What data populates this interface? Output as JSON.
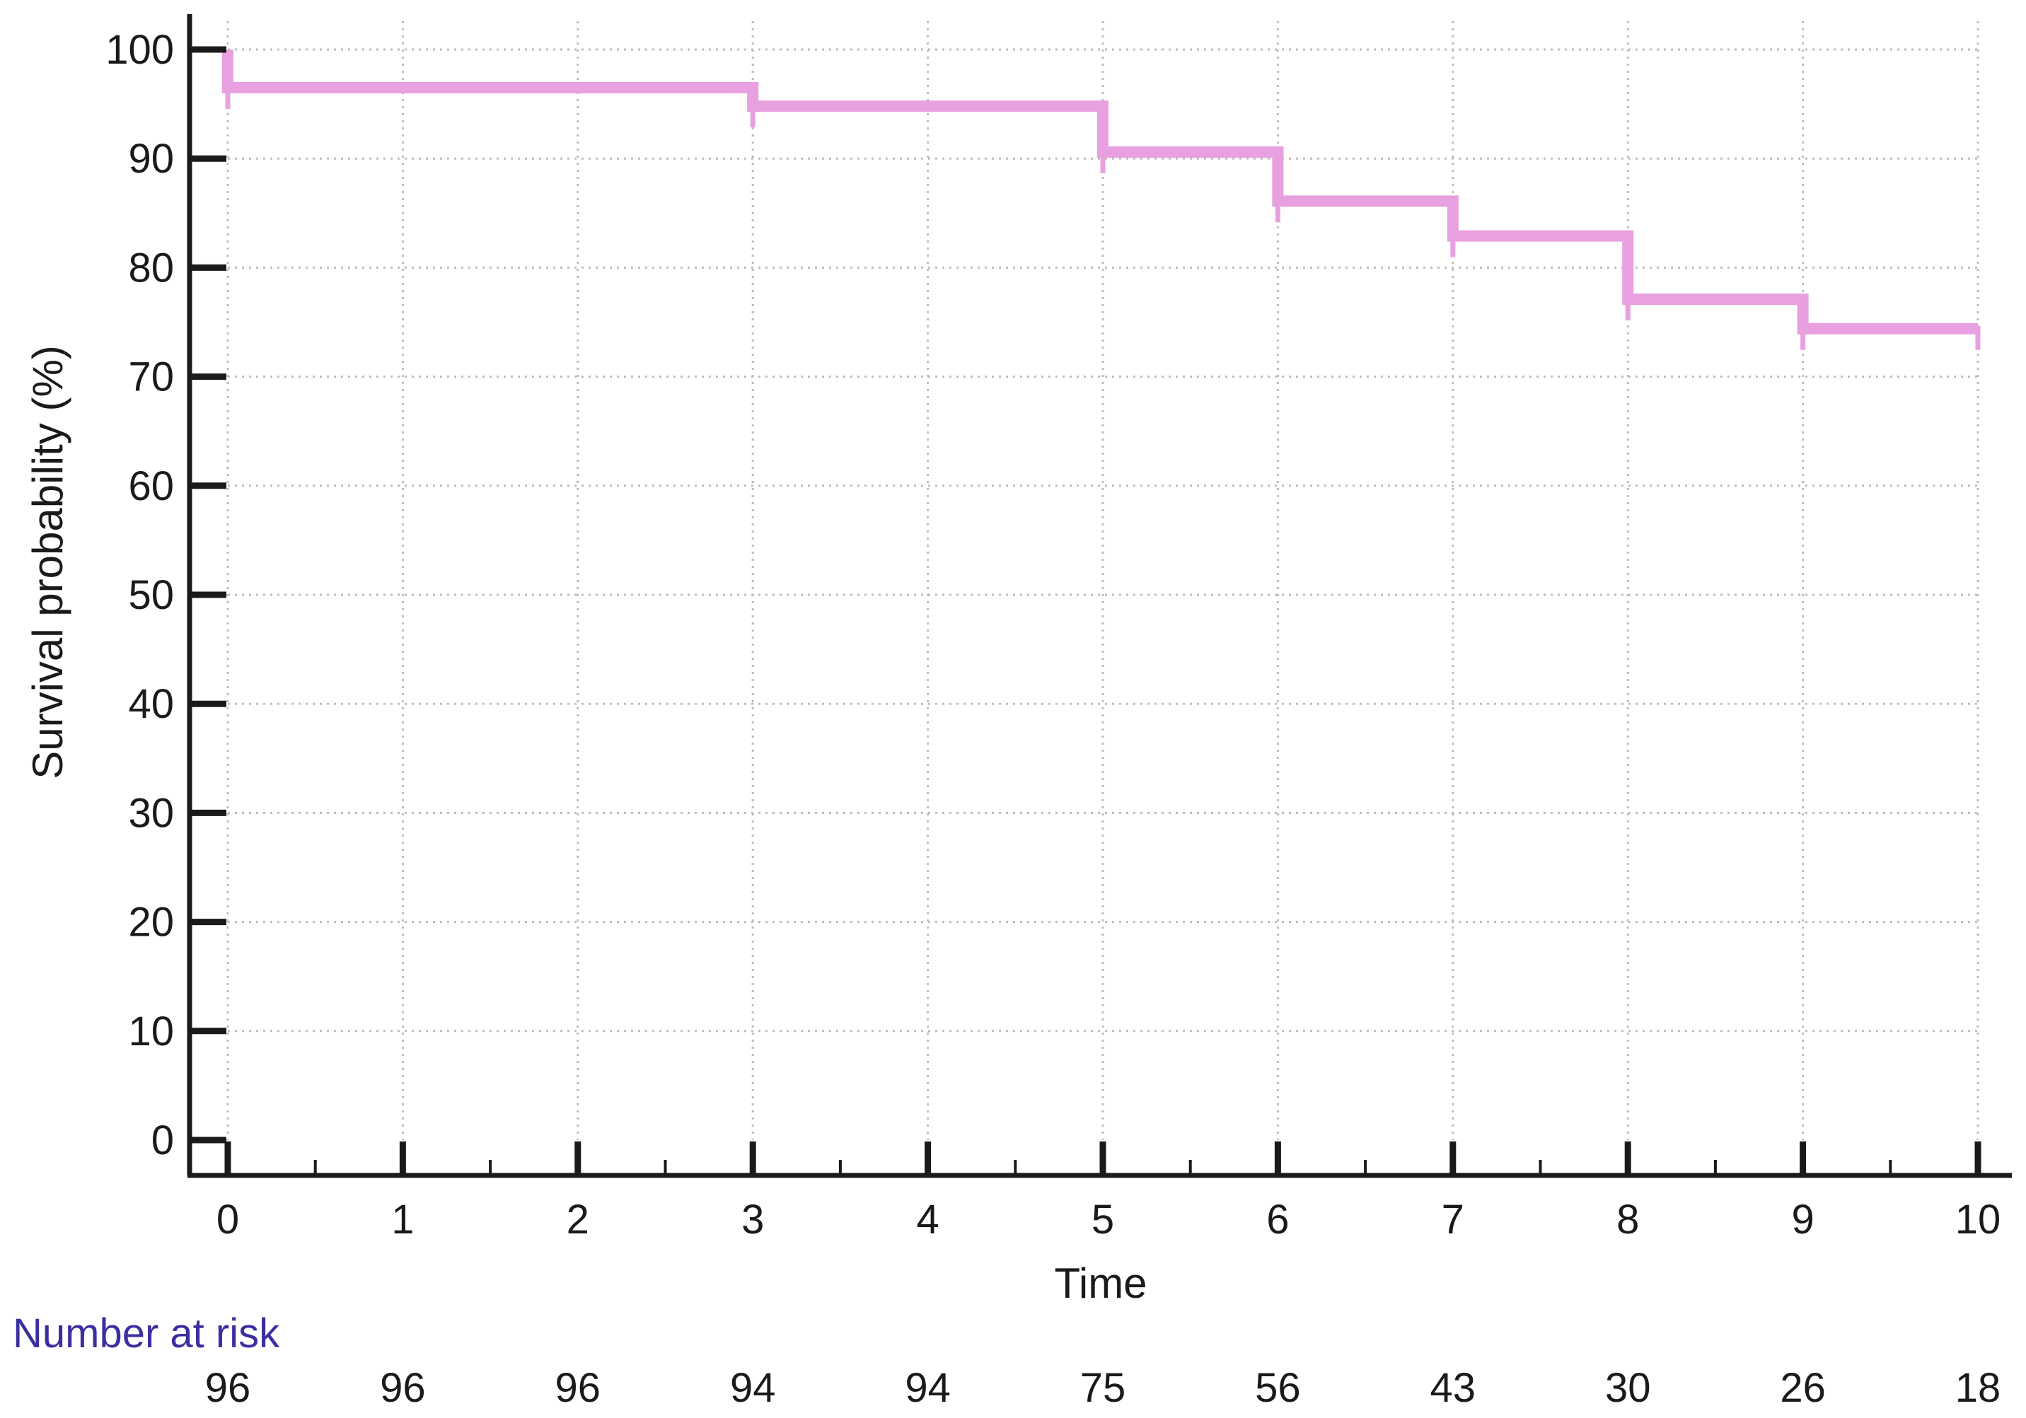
{
  "chart_data": {
    "type": "line",
    "xlabel": "Time",
    "ylabel": "Survival probability (%)",
    "xlim": [
      0,
      10
    ],
    "ylim": [
      0,
      100
    ],
    "x_ticks": [
      "0",
      "1",
      "2",
      "3",
      "4",
      "5",
      "6",
      "7",
      "8",
      "9",
      "10"
    ],
    "y_ticks": [
      "0",
      "10",
      "20",
      "30",
      "40",
      "50",
      "60",
      "70",
      "80",
      "90",
      "100"
    ],
    "grid": true,
    "series": [
      {
        "color": "#e8a0e0",
        "step": true,
        "x": [
          0,
          0,
          3,
          5,
          6,
          7,
          8,
          9,
          10
        ],
        "y": [
          100,
          96.5,
          94.8,
          90.6,
          86.1,
          82.9,
          77.1,
          74.4,
          74.4
        ],
        "censor_x": [
          0,
          3,
          5,
          6,
          7,
          8,
          9,
          10
        ],
        "censor_y": [
          96.5,
          94.8,
          90.6,
          86.1,
          82.9,
          77.1,
          74.4,
          74.4
        ]
      }
    ],
    "risk_table": {
      "title": "Number at risk",
      "title_color": "#3b2fa0",
      "times": [
        0,
        1,
        2,
        3,
        4,
        5,
        6,
        7,
        8,
        9,
        10
      ],
      "values": [
        "96",
        "96",
        "96",
        "94",
        "94",
        "75",
        "56",
        "43",
        "30",
        "26",
        "18"
      ]
    }
  }
}
